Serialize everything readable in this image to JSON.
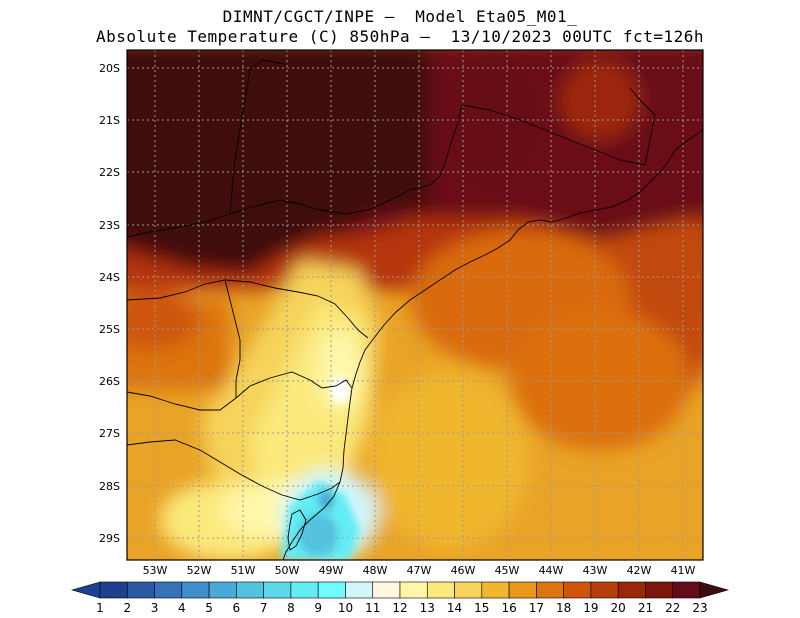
{
  "header": {
    "line1": "DIMNT/CGCT/INPE –  Model Eta05_M01_",
    "line2": "Absolute Temperature (C) 850hPa –  13/10/2023 00UTC fct=126h"
  },
  "map": {
    "variable": "Absolute Temperature (C) 850hPa",
    "lat_labels": [
      "20S",
      "21S",
      "22S",
      "23S",
      "24S",
      "25S",
      "26S",
      "27S",
      "28S",
      "29S"
    ],
    "lon_labels": [
      "53W",
      "52W",
      "51W",
      "50W",
      "49W",
      "48W",
      "47W",
      "46W",
      "45W",
      "44W",
      "43W",
      "42W",
      "41W"
    ],
    "lat_range": [
      -29.4,
      -19.8
    ],
    "lon_range": [
      -53.7,
      -40.6
    ]
  },
  "colorbar": {
    "labels": [
      "1",
      "2",
      "3",
      "4",
      "5",
      "6",
      "7",
      "8",
      "9",
      "10",
      "11",
      "12",
      "13",
      "14",
      "15",
      "16",
      "17",
      "18",
      "19",
      "20",
      "21",
      "22",
      "23"
    ],
    "colors": [
      "#1f3f8f",
      "#2a59a6",
      "#3573b8",
      "#3f8ecb",
      "#4aa9d8",
      "#52c3e0",
      "#5cd9ea",
      "#63ecf4",
      "#6ffbff",
      "#d2f6fb",
      "#fff7e0",
      "#fff6a8",
      "#fbe97c",
      "#f6d35a",
      "#f0b62f",
      "#e9971a",
      "#dc7411",
      "#ce560c",
      "#b73d0b",
      "#9c2608",
      "#7e150a",
      "#660c18",
      "#3f0a10"
    ]
  }
}
